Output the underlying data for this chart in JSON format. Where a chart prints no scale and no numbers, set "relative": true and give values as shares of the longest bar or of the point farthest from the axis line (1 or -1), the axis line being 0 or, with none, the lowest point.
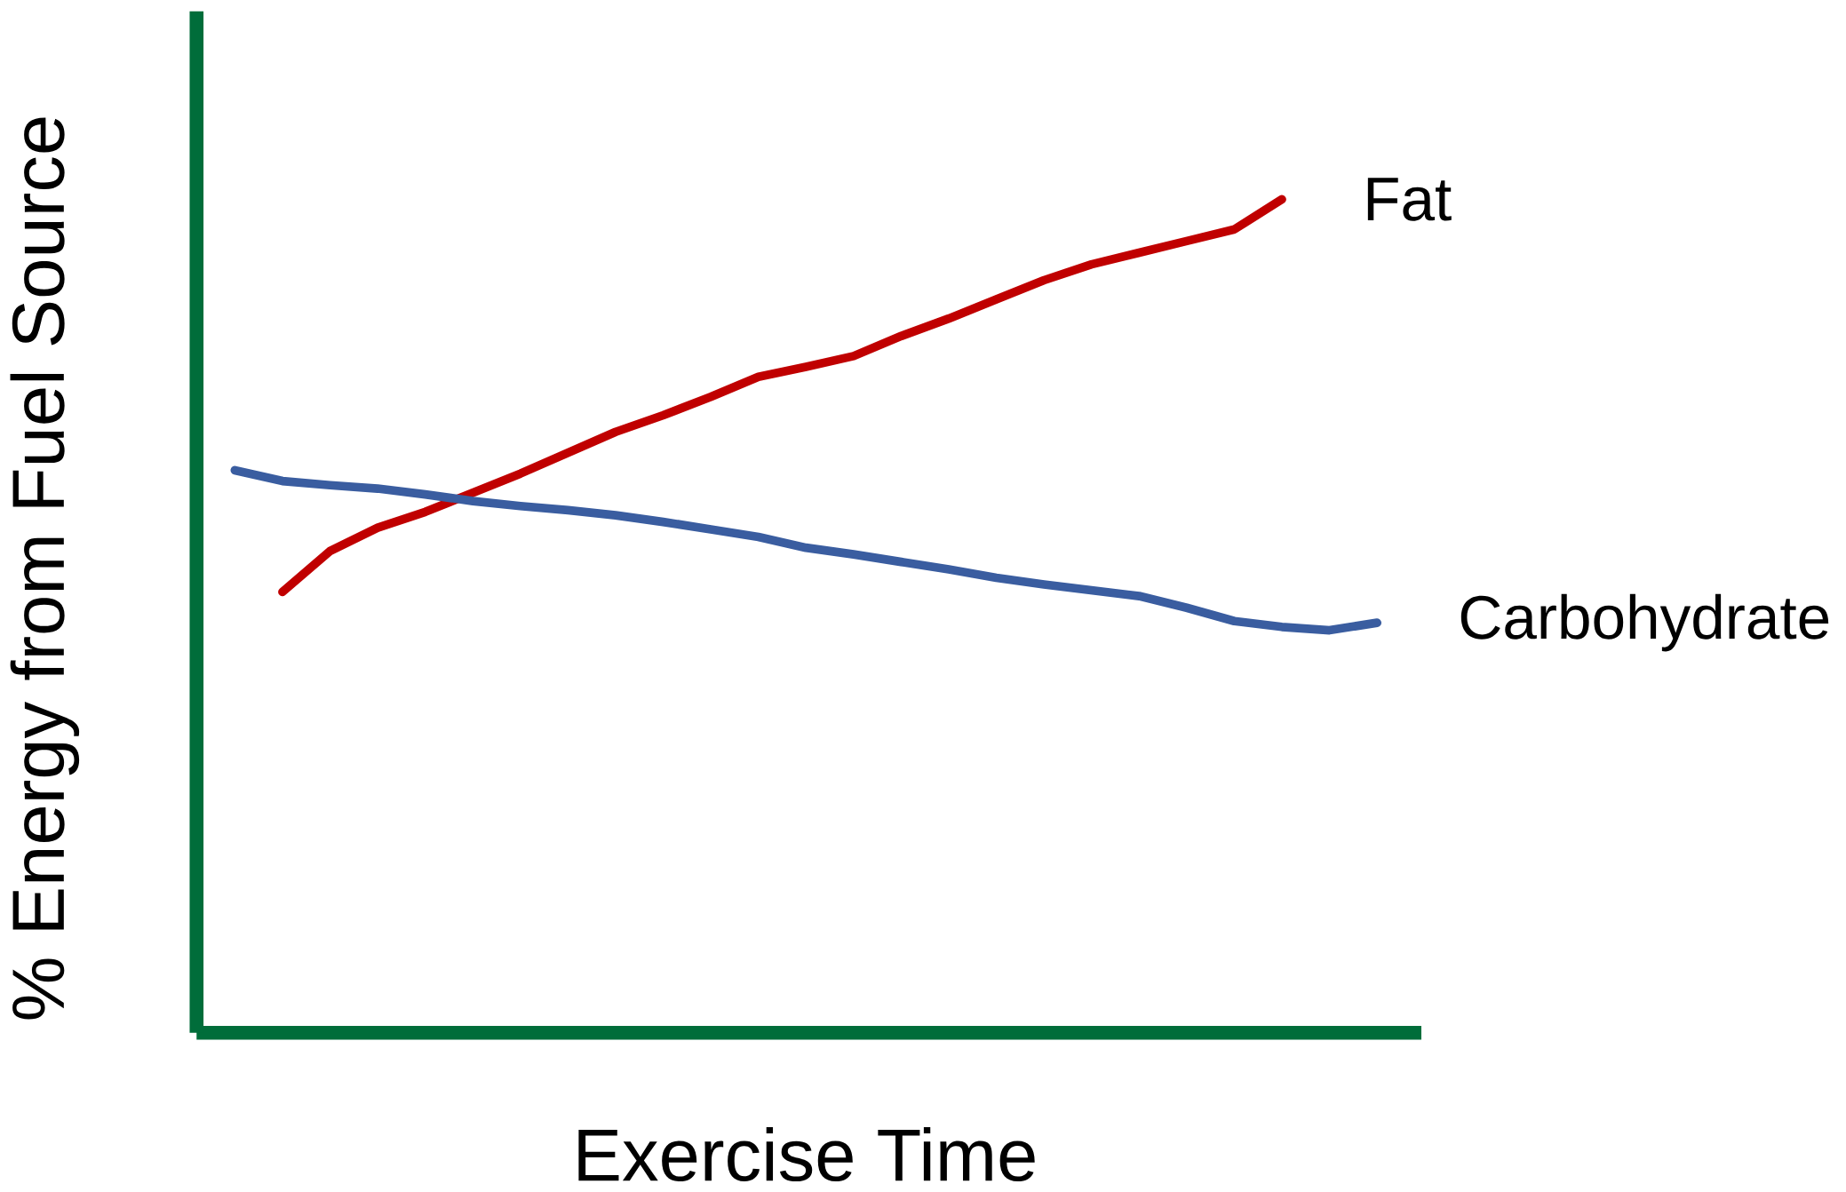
{
  "chart_data": {
    "type": "line",
    "relative": true,
    "xlabel": "Exercise Time",
    "ylabel": "% Energy from Fuel Source",
    "categories": [
      null,
      null,
      null,
      null,
      null,
      null,
      null,
      null,
      null,
      null,
      null,
      null,
      null,
      null,
      null,
      null,
      null,
      null,
      null,
      null,
      null,
      null,
      null,
      null,
      null
    ],
    "series": [
      {
        "name": "Fat",
        "color": "#c00000",
        "values": [
          null,
          0.529,
          0.578,
          0.606,
          0.625,
          0.648,
          0.671,
          0.696,
          0.721,
          0.741,
          0.763,
          0.787,
          0.799,
          0.812,
          0.836,
          0.857,
          0.88,
          0.903,
          0.922,
          0.936,
          0.95,
          0.964,
          1.0,
          null,
          null
        ]
      },
      {
        "name": "Carbohydrate",
        "color": "#3a5da0",
        "values": [
          0.675,
          0.662,
          0.657,
          0.653,
          0.646,
          0.638,
          0.632,
          0.627,
          0.621,
          0.613,
          0.604,
          0.595,
          0.582,
          0.574,
          0.565,
          0.556,
          0.546,
          0.538,
          0.531,
          0.524,
          0.51,
          0.494,
          0.487,
          0.483,
          0.492
        ]
      }
    ]
  }
}
